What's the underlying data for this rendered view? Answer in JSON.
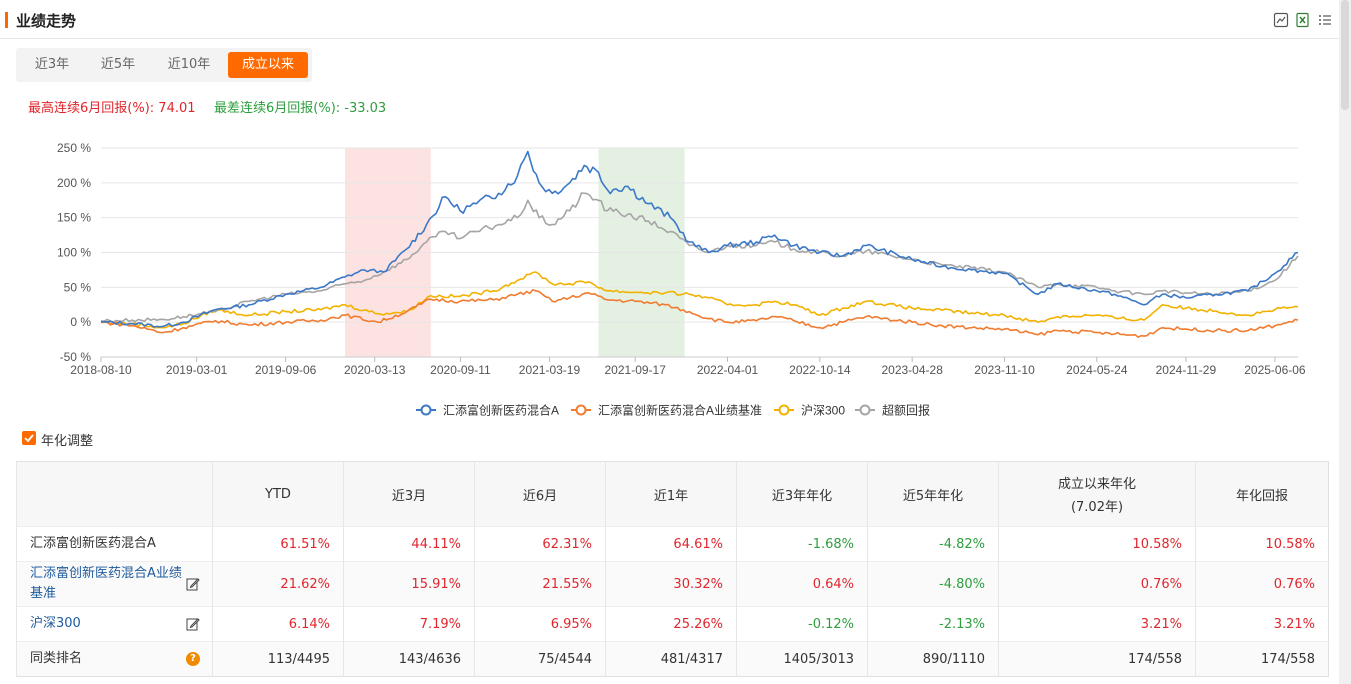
{
  "header": {
    "title": "业绩走势",
    "icons": [
      "chart-export-icon",
      "excel-export-icon",
      "list-menu-icon"
    ]
  },
  "tabs": [
    {
      "label": "近3年",
      "active": false
    },
    {
      "label": "近5年",
      "active": false
    },
    {
      "label": "近10年",
      "active": false
    },
    {
      "label": "成立以来",
      "active": true
    }
  ],
  "stats": {
    "best_label": "最高连续6月回报(%):",
    "best_value": "74.01",
    "worst_label": "最差连续6月回报(%):",
    "worst_value": "-33.03"
  },
  "chart_data": {
    "type": "line",
    "yticks": [
      "250 %",
      "200 %",
      "150 %",
      "100 %",
      "50 %",
      "0 %",
      "-50 %"
    ],
    "ylim": [
      -50,
      250
    ],
    "xticks": [
      "2018-08-10",
      "2019-03-01",
      "2019-09-06",
      "2020-03-13",
      "2020-09-11",
      "2021-03-19",
      "2021-09-17",
      "2022-04-01",
      "2022-10-14",
      "2023-04-28",
      "2023-11-10",
      "2024-05-24",
      "2024-11-29",
      "2025-06-06"
    ],
    "x_range": [
      "2018-08-10",
      "2025-07-25"
    ],
    "highlight_best": {
      "from": "2020-01-10",
      "to": "2020-07-10",
      "color": "#fde2e2"
    },
    "highlight_worst": {
      "from": "2021-07-01",
      "to": "2021-12-31",
      "color": "#e4f1e2"
    },
    "grid": true,
    "legend_position": "bottom",
    "series": [
      {
        "name": "汇添富创新医药混合A",
        "color": "#3b78c8",
        "points": [
          [
            "2018-08-10",
            0
          ],
          [
            "2018-10-15",
            -2
          ],
          [
            "2018-12-20",
            -6
          ],
          [
            "2019-02-01",
            0
          ],
          [
            "2019-04-10",
            18
          ],
          [
            "2019-06-20",
            25
          ],
          [
            "2019-09-06",
            40
          ],
          [
            "2019-11-20",
            50
          ],
          [
            "2020-01-10",
            65
          ],
          [
            "2020-02-20",
            75
          ],
          [
            "2020-04-01",
            72
          ],
          [
            "2020-05-20",
            105
          ],
          [
            "2020-07-01",
            140
          ],
          [
            "2020-08-10",
            180
          ],
          [
            "2020-09-10",
            160
          ],
          [
            "2020-10-15",
            170
          ],
          [
            "2020-12-01",
            185
          ],
          [
            "2021-01-10",
            210
          ],
          [
            "2021-02-01",
            245
          ],
          [
            "2021-02-25",
            200
          ],
          [
            "2021-03-25",
            185
          ],
          [
            "2021-05-01",
            200
          ],
          [
            "2021-06-01",
            225
          ],
          [
            "2021-07-01",
            215
          ],
          [
            "2021-07-20",
            190
          ],
          [
            "2021-09-01",
            195
          ],
          [
            "2021-10-15",
            170
          ],
          [
            "2021-12-01",
            150
          ],
          [
            "2022-01-10",
            115
          ],
          [
            "2022-02-20",
            100
          ],
          [
            "2022-04-01",
            110
          ],
          [
            "2022-06-01",
            115
          ],
          [
            "2022-07-10",
            125
          ],
          [
            "2022-08-20",
            110
          ],
          [
            "2022-10-14",
            100
          ],
          [
            "2022-12-01",
            95
          ],
          [
            "2023-01-20",
            110
          ],
          [
            "2023-04-28",
            90
          ],
          [
            "2023-07-01",
            80
          ],
          [
            "2023-09-01",
            75
          ],
          [
            "2023-11-10",
            70
          ],
          [
            "2024-01-20",
            40
          ],
          [
            "2024-03-01",
            55
          ],
          [
            "2024-05-24",
            45
          ],
          [
            "2024-07-01",
            40
          ],
          [
            "2024-09-01",
            25
          ],
          [
            "2024-10-10",
            40
          ],
          [
            "2024-11-29",
            35
          ],
          [
            "2025-02-01",
            40
          ],
          [
            "2025-04-10",
            45
          ],
          [
            "2025-06-06",
            70
          ],
          [
            "2025-07-25",
            100
          ]
        ]
      },
      {
        "name": "汇添富创新医药混合A业绩基准",
        "color": "#f07c30",
        "points": [
          [
            "2018-08-10",
            0
          ],
          [
            "2018-10-15",
            -5
          ],
          [
            "2018-12-20",
            -15
          ],
          [
            "2019-02-01",
            -8
          ],
          [
            "2019-04-10",
            2
          ],
          [
            "2019-06-20",
            -4
          ],
          [
            "2019-09-06",
            0
          ],
          [
            "2019-11-20",
            3
          ],
          [
            "2020-01-10",
            10
          ],
          [
            "2020-03-20",
            0
          ],
          [
            "2020-05-20",
            15
          ],
          [
            "2020-07-10",
            33
          ],
          [
            "2020-09-10",
            30
          ],
          [
            "2020-11-20",
            32
          ],
          [
            "2021-01-10",
            40
          ],
          [
            "2021-02-18",
            45
          ],
          [
            "2021-03-25",
            30
          ],
          [
            "2021-05-01",
            35
          ],
          [
            "2021-06-10",
            42
          ],
          [
            "2021-07-20",
            32
          ],
          [
            "2021-09-17",
            30
          ],
          [
            "2021-11-20",
            25
          ],
          [
            "2022-01-10",
            15
          ],
          [
            "2022-02-20",
            5
          ],
          [
            "2022-04-01",
            0
          ],
          [
            "2022-06-01",
            2
          ],
          [
            "2022-07-10",
            8
          ],
          [
            "2022-08-20",
            2
          ],
          [
            "2022-10-14",
            -8
          ],
          [
            "2022-12-01",
            0
          ],
          [
            "2023-01-20",
            8
          ],
          [
            "2023-04-28",
            0
          ],
          [
            "2023-07-01",
            -5
          ],
          [
            "2023-09-01",
            -8
          ],
          [
            "2023-11-10",
            -10
          ],
          [
            "2024-01-20",
            -18
          ],
          [
            "2024-03-01",
            -12
          ],
          [
            "2024-05-24",
            -15
          ],
          [
            "2024-07-01",
            -17
          ],
          [
            "2024-09-01",
            -20
          ],
          [
            "2024-10-10",
            -8
          ],
          [
            "2024-11-29",
            -10
          ],
          [
            "2025-02-01",
            -12
          ],
          [
            "2025-04-10",
            -12
          ],
          [
            "2025-06-06",
            -5
          ],
          [
            "2025-07-25",
            3
          ]
        ]
      },
      {
        "name": "沪深300",
        "color": "#f2b200",
        "points": [
          [
            "2018-08-10",
            0
          ],
          [
            "2018-10-15",
            -2
          ],
          [
            "2018-12-20",
            -8
          ],
          [
            "2019-02-01",
            -2
          ],
          [
            "2019-04-10",
            18
          ],
          [
            "2019-06-20",
            10
          ],
          [
            "2019-09-06",
            15
          ],
          [
            "2019-11-20",
            18
          ],
          [
            "2020-01-10",
            25
          ],
          [
            "2020-03-20",
            12
          ],
          [
            "2020-05-20",
            15
          ],
          [
            "2020-07-10",
            38
          ],
          [
            "2020-09-10",
            37
          ],
          [
            "2020-11-20",
            45
          ],
          [
            "2021-01-10",
            60
          ],
          [
            "2021-02-18",
            72
          ],
          [
            "2021-03-25",
            55
          ],
          [
            "2021-05-01",
            55
          ],
          [
            "2021-06-10",
            58
          ],
          [
            "2021-07-20",
            45
          ],
          [
            "2021-09-17",
            43
          ],
          [
            "2021-11-20",
            42
          ],
          [
            "2022-01-10",
            40
          ],
          [
            "2022-02-20",
            35
          ],
          [
            "2022-04-01",
            25
          ],
          [
            "2022-06-01",
            25
          ],
          [
            "2022-07-10",
            30
          ],
          [
            "2022-08-20",
            25
          ],
          [
            "2022-10-14",
            10
          ],
          [
            "2022-12-01",
            20
          ],
          [
            "2023-01-20",
            30
          ],
          [
            "2023-04-28",
            20
          ],
          [
            "2023-07-01",
            17
          ],
          [
            "2023-09-01",
            13
          ],
          [
            "2023-11-10",
            10
          ],
          [
            "2024-01-20",
            0
          ],
          [
            "2024-03-01",
            8
          ],
          [
            "2024-05-24",
            10
          ],
          [
            "2024-07-01",
            6
          ],
          [
            "2024-09-01",
            3
          ],
          [
            "2024-10-10",
            25
          ],
          [
            "2024-11-29",
            20
          ],
          [
            "2025-02-01",
            16
          ],
          [
            "2025-04-10",
            10
          ],
          [
            "2025-06-06",
            18
          ],
          [
            "2025-07-25",
            22
          ]
        ]
      },
      {
        "name": "超额回报",
        "color": "#a5a5a5",
        "points": [
          [
            "2018-08-10",
            2
          ],
          [
            "2018-10-15",
            3
          ],
          [
            "2018-12-20",
            4
          ],
          [
            "2019-02-01",
            8
          ],
          [
            "2019-04-10",
            15
          ],
          [
            "2019-06-20",
            30
          ],
          [
            "2019-09-06",
            40
          ],
          [
            "2019-11-20",
            45
          ],
          [
            "2020-01-10",
            55
          ],
          [
            "2020-02-20",
            60
          ],
          [
            "2020-04-01",
            72
          ],
          [
            "2020-05-20",
            90
          ],
          [
            "2020-07-01",
            115
          ],
          [
            "2020-08-10",
            130
          ],
          [
            "2020-09-10",
            120
          ],
          [
            "2020-10-15",
            130
          ],
          [
            "2020-12-01",
            140
          ],
          [
            "2021-01-10",
            150
          ],
          [
            "2021-02-01",
            175
          ],
          [
            "2021-02-25",
            150
          ],
          [
            "2021-03-25",
            140
          ],
          [
            "2021-05-01",
            160
          ],
          [
            "2021-06-01",
            185
          ],
          [
            "2021-07-01",
            175
          ],
          [
            "2021-07-20",
            160
          ],
          [
            "2021-09-01",
            155
          ],
          [
            "2021-10-15",
            145
          ],
          [
            "2021-12-01",
            130
          ],
          [
            "2022-01-10",
            110
          ],
          [
            "2022-02-20",
            100
          ],
          [
            "2022-04-01",
            110
          ],
          [
            "2022-06-01",
            110
          ],
          [
            "2022-07-10",
            115
          ],
          [
            "2022-08-20",
            105
          ],
          [
            "2022-10-14",
            100
          ],
          [
            "2022-12-01",
            95
          ],
          [
            "2023-01-20",
            102
          ],
          [
            "2023-04-28",
            90
          ],
          [
            "2023-07-01",
            82
          ],
          [
            "2023-09-01",
            78
          ],
          [
            "2023-11-10",
            72
          ],
          [
            "2024-01-20",
            50
          ],
          [
            "2024-03-01",
            55
          ],
          [
            "2024-05-24",
            50
          ],
          [
            "2024-07-01",
            45
          ],
          [
            "2024-09-01",
            40
          ],
          [
            "2024-10-10",
            45
          ],
          [
            "2024-11-29",
            42
          ],
          [
            "2025-02-01",
            40
          ],
          [
            "2025-04-10",
            45
          ],
          [
            "2025-06-06",
            60
          ],
          [
            "2025-07-25",
            95
          ]
        ]
      }
    ]
  },
  "annualize": {
    "label": "年化调整",
    "checked": true
  },
  "table": {
    "headers": [
      "",
      "YTD",
      "近3月",
      "近6月",
      "近1年",
      "近3年年化",
      "近5年年化",
      "成立以来年化",
      "年化回报"
    ],
    "since_inception_sub": "(7.02年)",
    "rows": [
      {
        "name": "汇添富创新医药混合A",
        "link": false,
        "icon": "",
        "cells": [
          "61.51%",
          "44.11%",
          "62.31%",
          "64.61%",
          "-1.68%",
          "-4.82%",
          "10.58%",
          "10.58%"
        ]
      },
      {
        "name": "汇添富创新医药混合A业绩基准",
        "link": true,
        "icon": "edit-icon",
        "cells": [
          "21.62%",
          "15.91%",
          "21.55%",
          "30.32%",
          "0.64%",
          "-4.80%",
          "0.76%",
          "0.76%"
        ]
      },
      {
        "name": "沪深300",
        "link": true,
        "icon": "edit-icon",
        "cells": [
          "6.14%",
          "7.19%",
          "6.95%",
          "25.26%",
          "-0.12%",
          "-2.13%",
          "3.21%",
          "3.21%"
        ]
      },
      {
        "name": "同类排名",
        "link": false,
        "icon": "help-icon",
        "cells": [
          "113/4495",
          "143/4636",
          "75/4544",
          "481/4317",
          "1405/3013",
          "890/1110",
          "174/558",
          "174/558"
        ]
      }
    ],
    "rank_help_glyph": "?"
  }
}
